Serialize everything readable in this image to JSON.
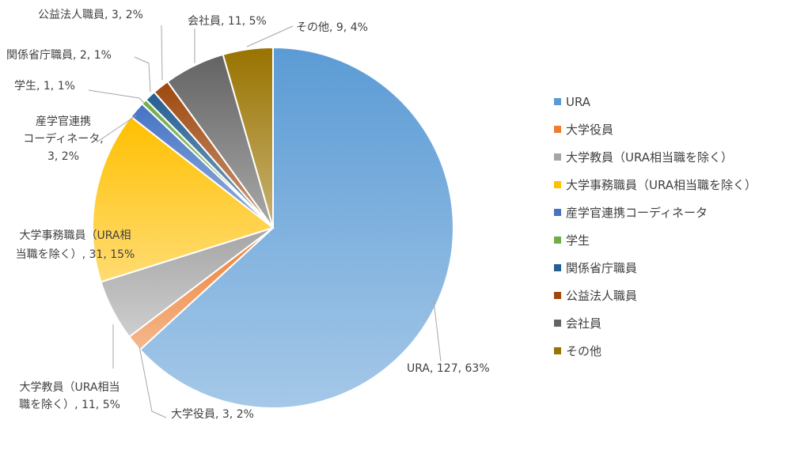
{
  "chart_data": {
    "type": "pie",
    "categories": [
      "URA",
      "大学役員",
      "大学教員（URA相当職を除く）",
      "大学事務職員（URA相当職を除く）",
      "産学官連携コーディネータ",
      "学生",
      "関係省庁職員",
      "公益法人職員",
      "会社員",
      "その他"
    ],
    "values": [
      127,
      3,
      11,
      31,
      3,
      1,
      2,
      3,
      11,
      9
    ],
    "percents": [
      63,
      2,
      5,
      15,
      2,
      1,
      1,
      2,
      5,
      4
    ],
    "colors": [
      "#5b9bd5",
      "#ed7d31",
      "#a5a5a5",
      "#ffc000",
      "#4472c4",
      "#70ad47",
      "#255e91",
      "#9e480e",
      "#636363",
      "#997300"
    ],
    "data_labels": [
      [
        "URA, 127, 63%"
      ],
      [
        "大学役員, 3, 2%"
      ],
      [
        "大学教員（URA相当",
        "職を除く）, 11, 5%"
      ],
      [
        "大学事務職員（URA相",
        "当職を除く）, 31, 15%"
      ],
      [
        "産学官連携",
        "コーディネータ,",
        "3, 2%"
      ],
      [
        "学生, 1, 1%"
      ],
      [
        "関係省庁職員, 2, 1%"
      ],
      [
        "公益法人職員, 3, 2%"
      ],
      [
        "会社員, 11, 5%"
      ],
      [
        "その他, 9, 4%"
      ]
    ],
    "legend_position": "right",
    "start_angle": "top, clockwise"
  }
}
